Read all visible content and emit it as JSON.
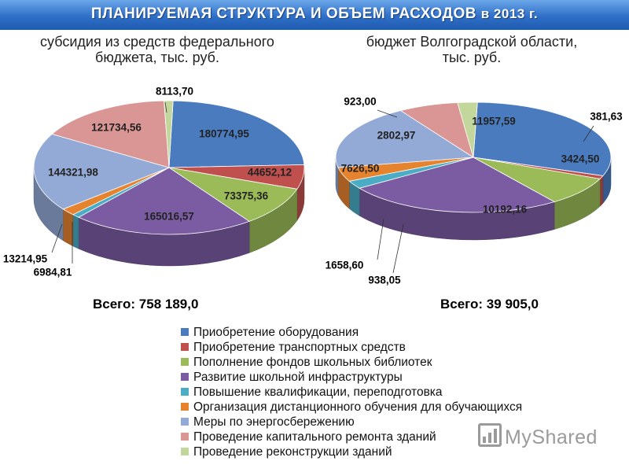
{
  "header": {
    "title": "ПЛАНИРУЕМАЯ СТРУКТУРА И ОБЪЕМ РАСХОДОВ",
    "year": "в 2013 г."
  },
  "watermark": "MyShared",
  "colors": [
    "#4a7bbf",
    "#c0504d",
    "#9bbb59",
    "#7b5ca3",
    "#4bacc6",
    "#e6832f",
    "#93a9d6",
    "#d99694",
    "#c3d69b"
  ],
  "chart_data": [
    {
      "type": "pie",
      "title": "субсидия из средств федерального бюджета, тыс. руб.",
      "title_lines": [
        "субсидия из средств федерального",
        "бюджета, тыс. руб."
      ],
      "total_label": "Всего: 758 189,0",
      "categories": [
        "Приобретение оборудования",
        "Приобретение транспортных средств",
        "Пополнение фондов школьных библиотек",
        "Развитие школьной инфраструктуры",
        "Повышение квалификации, переподготовка",
        "Организация дистанционного обучения для обучающихся",
        "Меры по энергосбережению",
        "Проведение капитального ремонта зданий",
        "Проведение реконструкции зданий"
      ],
      "values": [
        180774.95,
        44652.12,
        73375.36,
        165016.57,
        6984.81,
        13214.95,
        144321.98,
        121734.56,
        8113.7
      ],
      "labels": [
        "180774,95",
        "44652,12",
        "73375,36",
        "165016,57",
        "6984,81",
        "13214,95",
        "144321,98",
        "121734,56",
        "8113,70"
      ]
    },
    {
      "type": "pie",
      "title": "бюджет Волгоградской области, тыс. руб.",
      "title_lines": [
        "бюджет Волгоградской области,",
        "тыс. руб."
      ],
      "total_label": "Всего: 39 905,0",
      "categories": [
        "Приобретение оборудования",
        "Приобретение транспортных средств",
        "Пополнение фондов школьных библиотек",
        "Развитие школьной инфраструктуры",
        "Повышение квалификации, переподготовка",
        "Организация дистанционного обучения для обучающихся",
        "Меры по энергосбережению",
        "Проведение капитального ремонта зданий",
        "Проведение реконструкции зданий"
      ],
      "values": [
        11957.59,
        381.63,
        3424.5,
        10192.16,
        938.05,
        1658.6,
        7626.5,
        2802.97,
        923.0
      ],
      "labels": [
        "11957,59",
        "381,63",
        "3424,50",
        "10192,16",
        "938,05",
        "1658,60",
        "7626,50",
        "2802,97",
        "923,00"
      ]
    }
  ],
  "legend": [
    "Приобретение оборудования",
    "Приобретение транспортных средств",
    "Пополнение фондов школьных библиотек",
    "Развитие школьной инфраструктуры",
    "Повышение квалификации, переподготовка",
    "Организация дистанционного обучения для обучающихся",
    "Меры по энергосбережению",
    "Проведение капитального ремонта зданий",
    "Проведение реконструкции зданий"
  ]
}
